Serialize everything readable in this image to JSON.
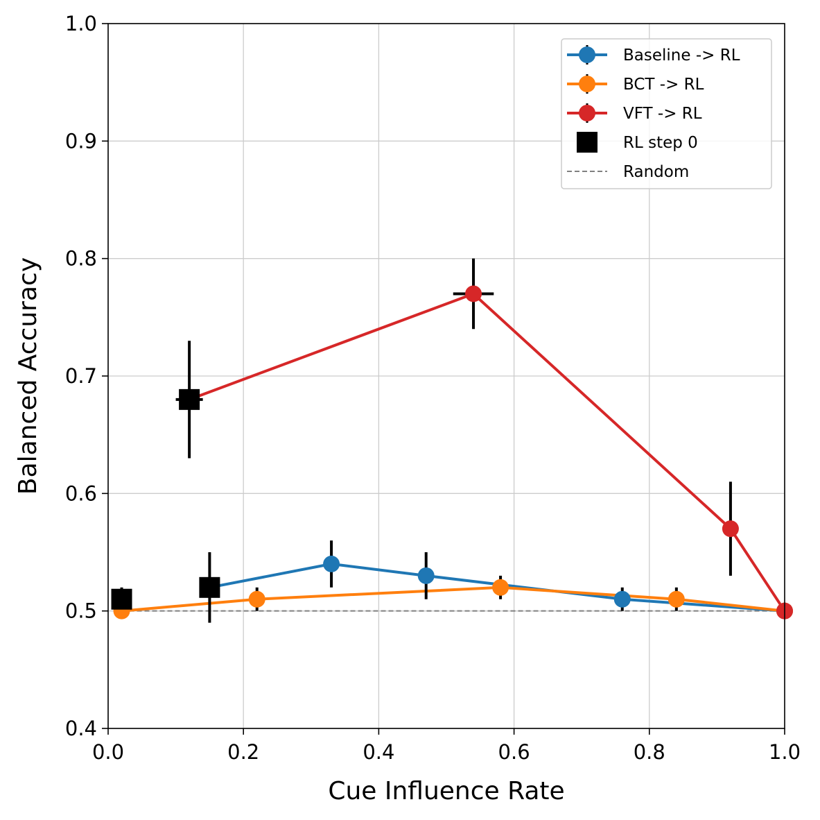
{
  "chart_data": {
    "type": "line",
    "title": "",
    "xlabel": "Cue Influence Rate",
    "ylabel": "Balanced Accuracy",
    "xlim": [
      0.0,
      1.0
    ],
    "ylim": [
      0.4,
      1.0
    ],
    "xticks": [
      "0.0",
      "0.2",
      "0.4",
      "0.6",
      "0.8",
      "1.0"
    ],
    "yticks": [
      "0.4",
      "0.5",
      "0.6",
      "0.7",
      "0.8",
      "0.9",
      "1.0"
    ],
    "grid": true,
    "legend_position": "top-right",
    "colors": {
      "Baseline": "#1f77b4",
      "BCT": "#ff7f0e",
      "VFT": "#d62728",
      "errorbar": "#000000",
      "random": "#808080",
      "rlstep0": "#000000"
    },
    "series": [
      {
        "name": "Baseline -> RL",
        "color": "#1f77b4",
        "points": [
          {
            "x": 0.15,
            "y": 0.52,
            "xerr": 0.01,
            "yerr": 0.03
          },
          {
            "x": 0.33,
            "y": 0.54,
            "xerr": 0.01,
            "yerr": 0.02
          },
          {
            "x": 0.47,
            "y": 0.53,
            "xerr": 0.01,
            "yerr": 0.02
          },
          {
            "x": 0.76,
            "y": 0.51,
            "xerr": 0.01,
            "yerr": 0.01
          },
          {
            "x": 1.0,
            "y": 0.5,
            "xerr": 0.0,
            "yerr": 0.0
          }
        ]
      },
      {
        "name": "BCT -> RL",
        "color": "#ff7f0e",
        "points": [
          {
            "x": 0.02,
            "y": 0.51,
            "xerr": 0.01,
            "yerr": 0.01
          },
          {
            "x": 0.02,
            "y": 0.5,
            "xerr": 0.0,
            "yerr": 0.0
          },
          {
            "x": 0.22,
            "y": 0.51,
            "xerr": 0.01,
            "yerr": 0.01
          },
          {
            "x": 0.58,
            "y": 0.52,
            "xerr": 0.01,
            "yerr": 0.01
          },
          {
            "x": 0.84,
            "y": 0.51,
            "xerr": 0.01,
            "yerr": 0.01
          },
          {
            "x": 1.0,
            "y": 0.5,
            "xerr": 0.0,
            "yerr": 0.0
          }
        ]
      },
      {
        "name": "VFT -> RL",
        "color": "#d62728",
        "points": [
          {
            "x": 0.12,
            "y": 0.68,
            "xerr": 0.02,
            "yerr": 0.05
          },
          {
            "x": 0.54,
            "y": 0.77,
            "xerr": 0.03,
            "yerr": 0.03
          },
          {
            "x": 0.92,
            "y": 0.57,
            "xerr": 0.0,
            "yerr": 0.04
          },
          {
            "x": 1.0,
            "y": 0.5,
            "xerr": 0.0,
            "yerr": 0.0
          }
        ]
      }
    ],
    "rl_step0": {
      "name": "RL step 0",
      "points": [
        {
          "x": 0.02,
          "y": 0.51
        },
        {
          "x": 0.12,
          "y": 0.68
        },
        {
          "x": 0.15,
          "y": 0.52
        }
      ]
    },
    "random_baseline": {
      "name": "Random",
      "y": 0.5
    }
  }
}
